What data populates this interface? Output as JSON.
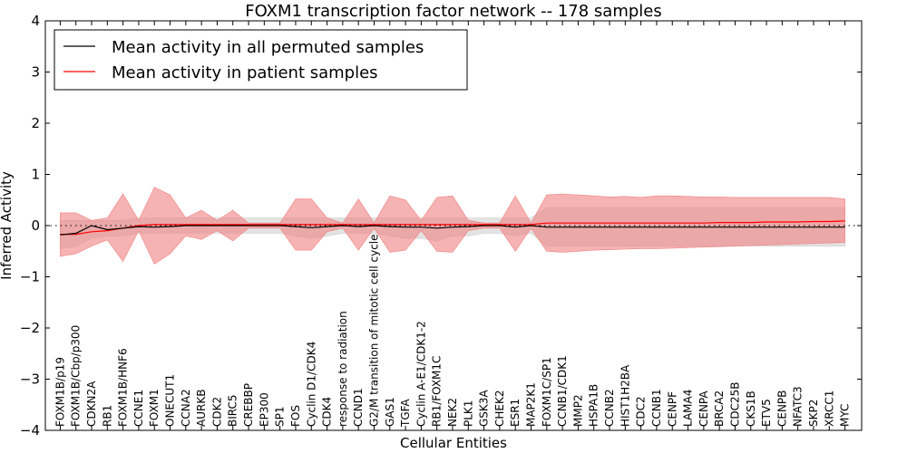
{
  "chart_data": {
    "type": "line",
    "title": "FOXM1 transcription factor network -- 178 samples",
    "xlabel": "Cellular Entities",
    "ylabel": "Inferred Activity",
    "ylim": [
      -4,
      4
    ],
    "yticks": [
      -4,
      -3,
      -2,
      -1,
      0,
      1,
      2,
      3,
      4
    ],
    "legend_position": "top-left",
    "colors": {
      "permuted": "#000000",
      "patient": "#ff0000",
      "patient_band": "#f08080",
      "permuted_band": "#cccccc"
    },
    "categories": [
      "FOXM1B/p19",
      "FOXM1B/Cbp/p300",
      "CDKN2A",
      "RB1",
      "FOXM1B/HNF6",
      "CCNE1",
      "FOXM1",
      "ONECUT1",
      "CCNA2",
      "AURKB",
      "CDK2",
      "BIRC5",
      "CREBBP",
      "EP300",
      "SP1",
      "FOS",
      "Cyclin D1/CDK4",
      "CDK4",
      "response to radiation",
      "CCND1",
      "G2/M transition of mitotic cell cycle",
      "GAS1",
      "TGFA",
      "Cyclin A-E1/CDK1-2",
      "RB1/FOXM1C",
      "NEK2",
      "PLK1",
      "GSK3A",
      "CHEK2",
      "ESR1",
      "MAP2K1",
      "FOXM1C/SP1",
      "CCNB1/CDK1",
      "MMP2",
      "HSPA1B",
      "CCNB2",
      "HIST1H2BA",
      "CDC2",
      "CCNB1",
      "CENPF",
      "LAMA4",
      "CENPA",
      "BRCA2",
      "CDC25B",
      "CKS1B",
      "ETV5",
      "CENPB",
      "NFATC3",
      "SKP2",
      "XRCC1",
      "MYC"
    ],
    "series": [
      {
        "name": "Mean activity in all permuted samples",
        "color": "#000000",
        "values": [
          -0.18,
          -0.15,
          0.0,
          -0.08,
          -0.05,
          -0.02,
          -0.03,
          -0.02,
          0.0,
          0.0,
          0.0,
          0.0,
          0.0,
          0.0,
          0.0,
          -0.02,
          -0.04,
          -0.02,
          0.0,
          -0.02,
          0.0,
          -0.02,
          -0.03,
          -0.03,
          -0.05,
          -0.03,
          -0.02,
          0.0,
          0.0,
          -0.03,
          0.0,
          -0.03,
          -0.03,
          -0.03,
          -0.03,
          -0.03,
          -0.03,
          -0.03,
          -0.03,
          -0.03,
          -0.03,
          -0.03,
          -0.03,
          -0.03,
          -0.03,
          -0.03,
          -0.03,
          -0.03,
          -0.03,
          -0.03,
          -0.03
        ],
        "band_upper": [
          0.1,
          0.1,
          0.1,
          0.1,
          0.1,
          0.15,
          0.15,
          0.15,
          0.15,
          0.15,
          0.15,
          0.15,
          0.15,
          0.15,
          0.15,
          0.15,
          0.15,
          0.15,
          0.15,
          0.15,
          0.15,
          0.15,
          0.15,
          0.15,
          0.15,
          0.15,
          0.15,
          0.15,
          0.15,
          0.15,
          0.15,
          0.35,
          0.35,
          0.35,
          0.35,
          0.35,
          0.35,
          0.35,
          0.35,
          0.35,
          0.35,
          0.35,
          0.35,
          0.35,
          0.35,
          0.35,
          0.35,
          0.35,
          0.35,
          0.35,
          0.35
        ],
        "band_lower": [
          -0.45,
          -0.4,
          -0.25,
          -0.2,
          -0.2,
          -0.15,
          -0.15,
          -0.15,
          -0.15,
          -0.15,
          -0.15,
          -0.15,
          -0.15,
          -0.15,
          -0.15,
          -0.2,
          -0.25,
          -0.2,
          -0.15,
          -0.15,
          -0.15,
          -0.2,
          -0.25,
          -0.25,
          -0.3,
          -0.2,
          -0.2,
          -0.15,
          -0.15,
          -0.2,
          -0.15,
          -0.4,
          -0.4,
          -0.4,
          -0.4,
          -0.4,
          -0.4,
          -0.4,
          -0.4,
          -0.4,
          -0.4,
          -0.4,
          -0.4,
          -0.4,
          -0.4,
          -0.4,
          -0.4,
          -0.4,
          -0.4,
          -0.4,
          -0.4
        ]
      },
      {
        "name": "Mean activity in patient samples",
        "color": "#ff0000",
        "values": [
          -0.17,
          -0.17,
          -0.12,
          -0.1,
          -0.05,
          0.0,
          0.02,
          0.02,
          0.02,
          0.02,
          0.02,
          0.02,
          0.02,
          0.02,
          0.02,
          0.02,
          0.02,
          0.02,
          0.02,
          0.02,
          0.02,
          0.02,
          0.02,
          0.02,
          0.02,
          0.02,
          0.02,
          0.02,
          0.02,
          0.02,
          0.02,
          0.05,
          0.05,
          0.05,
          0.05,
          0.05,
          0.05,
          0.05,
          0.05,
          0.05,
          0.05,
          0.05,
          0.06,
          0.06,
          0.06,
          0.07,
          0.07,
          0.07,
          0.08,
          0.08,
          0.09
        ],
        "band_upper": [
          0.25,
          0.25,
          0.1,
          0.15,
          0.62,
          0.1,
          0.75,
          0.6,
          0.15,
          0.3,
          0.1,
          0.3,
          0.05,
          0.05,
          0.05,
          0.52,
          0.52,
          0.15,
          0.05,
          0.52,
          0.05,
          0.58,
          0.5,
          0.1,
          0.55,
          0.58,
          0.1,
          0.05,
          0.05,
          0.58,
          0.05,
          0.6,
          0.62,
          0.6,
          0.58,
          0.56,
          0.57,
          0.55,
          0.58,
          0.58,
          0.57,
          0.56,
          0.56,
          0.55,
          0.55,
          0.55,
          0.55,
          0.55,
          0.55,
          0.55,
          0.52
        ],
        "band_lower": [
          -0.6,
          -0.55,
          -0.4,
          -0.28,
          -0.7,
          -0.1,
          -0.75,
          -0.55,
          -0.2,
          -0.27,
          -0.1,
          -0.3,
          -0.05,
          -0.05,
          -0.05,
          -0.48,
          -0.48,
          -0.12,
          -0.05,
          -0.48,
          -0.05,
          -0.52,
          -0.48,
          -0.1,
          -0.5,
          -0.52,
          -0.1,
          -0.05,
          -0.05,
          -0.5,
          -0.05,
          -0.5,
          -0.52,
          -0.5,
          -0.48,
          -0.47,
          -0.46,
          -0.45,
          -0.45,
          -0.44,
          -0.43,
          -0.42,
          -0.41,
          -0.4,
          -0.39,
          -0.38,
          -0.37,
          -0.36,
          -0.35,
          -0.34,
          -0.33
        ]
      }
    ]
  }
}
